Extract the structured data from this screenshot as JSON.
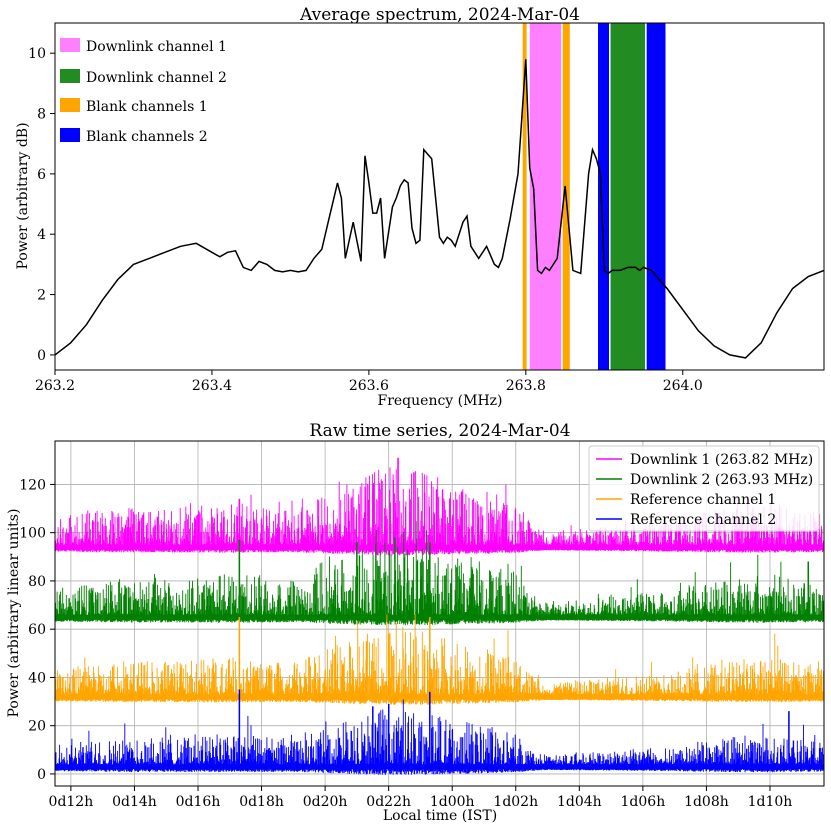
{
  "chart_data": [
    {
      "type": "line",
      "title": "Average spectrum, 2024-Mar-04",
      "xlabel": "Frequency (MHz)",
      "ylabel": "Power (arbitrary dB)",
      "xlim": [
        263.2,
        264.18
      ],
      "ylim": [
        -0.5,
        11
      ],
      "xticks": [
        263.2,
        263.4,
        263.6,
        263.8,
        264.0
      ],
      "xtick_labels": [
        "263.2",
        "263.4",
        "263.6",
        "263.8",
        "264.0"
      ],
      "yticks": [
        0,
        2,
        4,
        6,
        8,
        10
      ],
      "ytick_labels": [
        "0",
        "2",
        "4",
        "6",
        "8",
        "10"
      ],
      "grid": false,
      "legend_position": "top-left",
      "bands": [
        {
          "name": "Downlink channel 1",
          "color": "#ff80ff",
          "ranges": [
            [
              263.805,
              263.845
            ]
          ]
        },
        {
          "name": "Downlink channel 2",
          "color": "#228b22",
          "ranges": [
            [
              263.908,
              263.952
            ]
          ]
        },
        {
          "name": "Blank channels 1",
          "color": "#ffa500",
          "ranges": [
            [
              263.796,
              263.801
            ],
            [
              263.847,
              263.856
            ]
          ]
        },
        {
          "name": "Blank channels 2",
          "color": "#0000ff",
          "ranges": [
            [
              263.892,
              263.906
            ],
            [
              263.954,
              263.978
            ]
          ]
        }
      ],
      "series": [
        {
          "name": "Average spectrum",
          "color": "#000000",
          "x": [
            263.2,
            263.22,
            263.24,
            263.26,
            263.28,
            263.3,
            263.32,
            263.34,
            263.36,
            263.38,
            263.4,
            263.41,
            263.42,
            263.43,
            263.44,
            263.45,
            263.46,
            263.47,
            263.48,
            263.49,
            263.5,
            263.51,
            263.52,
            263.53,
            263.54,
            263.55,
            263.56,
            263.565,
            263.57,
            263.58,
            263.59,
            263.595,
            263.6,
            263.605,
            263.61,
            263.615,
            263.62,
            263.63,
            263.635,
            263.64,
            263.645,
            263.65,
            263.655,
            263.66,
            263.665,
            263.67,
            263.68,
            263.69,
            263.695,
            263.7,
            263.705,
            263.71,
            263.72,
            263.725,
            263.73,
            263.74,
            263.75,
            263.76,
            263.765,
            263.77,
            263.78,
            263.79,
            263.8,
            263.805,
            263.81,
            263.815,
            263.82,
            263.825,
            263.83,
            263.84,
            263.85,
            263.86,
            263.87,
            263.88,
            263.885,
            263.89,
            263.895,
            263.9,
            263.905,
            263.91,
            263.92,
            263.93,
            263.94,
            263.945,
            263.95,
            263.96,
            263.97,
            263.98,
            264.0,
            264.02,
            264.04,
            264.06,
            264.08,
            264.1,
            264.12,
            264.14,
            264.16,
            264.18
          ],
          "values": [
            0.0,
            0.4,
            1.0,
            1.8,
            2.5,
            3.0,
            3.2,
            3.4,
            3.6,
            3.7,
            3.4,
            3.25,
            3.4,
            3.45,
            2.9,
            2.8,
            3.1,
            3.0,
            2.8,
            2.75,
            2.8,
            2.75,
            2.8,
            3.2,
            3.5,
            4.6,
            5.7,
            5.2,
            3.2,
            4.4,
            3.1,
            6.6,
            5.7,
            4.7,
            4.7,
            5.2,
            3.2,
            4.9,
            5.2,
            5.6,
            5.8,
            5.7,
            4.2,
            3.7,
            3.8,
            6.8,
            6.5,
            3.9,
            3.7,
            3.9,
            3.8,
            3.6,
            4.4,
            4.6,
            3.6,
            3.2,
            3.6,
            3.0,
            2.9,
            3.2,
            4.5,
            6.0,
            9.8,
            6.2,
            5.5,
            2.8,
            2.7,
            2.9,
            2.8,
            3.2,
            5.6,
            2.8,
            2.7,
            6.0,
            6.8,
            6.5,
            6.0,
            2.8,
            2.7,
            2.8,
            2.8,
            2.9,
            2.9,
            2.8,
            2.9,
            2.8,
            2.5,
            2.2,
            1.5,
            0.8,
            0.3,
            0.0,
            -0.1,
            0.4,
            1.4,
            2.2,
            2.6,
            2.8
          ]
        }
      ]
    },
    {
      "type": "line",
      "title": "Raw time series, 2024-Mar-04",
      "xlabel": "Local time (IST)",
      "ylabel": "Power (arbitrary linear units)",
      "xlim": [
        11.5,
        35.7
      ],
      "ylim": [
        -5,
        138
      ],
      "xticks": [
        12,
        14,
        16,
        18,
        20,
        22,
        24,
        26,
        28,
        30,
        32,
        34
      ],
      "xtick_labels": [
        "0d12h",
        "0d14h",
        "0d16h",
        "0d18h",
        "0d20h",
        "0d22h",
        "1d00h",
        "1d02h",
        "1d04h",
        "1d06h",
        "1d08h",
        "1d10h"
      ],
      "yticks": [
        0,
        20,
        40,
        60,
        80,
        100,
        120
      ],
      "ytick_labels": [
        "0",
        "20",
        "40",
        "60",
        "80",
        "100",
        "120"
      ],
      "grid": true,
      "legend_position": "top-right",
      "envelope_x": [
        11.5,
        13,
        14,
        16,
        17,
        18,
        19,
        20,
        21,
        22,
        23,
        24,
        25,
        26,
        26.5,
        27,
        28,
        29,
        30,
        31,
        32,
        33,
        34,
        35,
        35.7
      ],
      "envelope_activity": [
        0.35,
        0.45,
        0.5,
        0.5,
        0.55,
        0.5,
        0.45,
        0.65,
        0.85,
        1.0,
        0.95,
        0.8,
        0.7,
        0.55,
        0.3,
        0.15,
        0.2,
        0.25,
        0.3,
        0.35,
        0.45,
        0.5,
        0.55,
        0.45,
        0.4
      ],
      "series": [
        {
          "name": "Downlink 1 (263.82 MHz)",
          "color": "#ff00ff",
          "baseline": 93,
          "spike_scale": 25,
          "spikes": [
            [
              17.3,
              114
            ],
            [
              21.5,
              120
            ],
            [
              22.3,
              131
            ],
            [
              22.8,
              125
            ],
            [
              24.3,
              117
            ],
            [
              33.3,
              115
            ]
          ]
        },
        {
          "name": "Downlink 2 (263.93 MHz)",
          "color": "#008000",
          "baseline": 64,
          "spike_scale": 24,
          "spikes": [
            [
              17.3,
              97
            ],
            [
              21.0,
              96
            ],
            [
              22.2,
              98
            ],
            [
              23.3,
              96
            ],
            [
              35.2,
              88
            ]
          ]
        },
        {
          "name": "Reference channel 1",
          "color": "#ffa500",
          "baseline": 31,
          "spike_scale": 22,
          "spikes": [
            [
              17.3,
              65
            ],
            [
              23.3,
              65
            ],
            [
              22.0,
              58
            ],
            [
              21.3,
              55
            ]
          ]
        },
        {
          "name": "Reference channel 2",
          "color": "#0000ff",
          "baseline": 2,
          "spike_scale": 18,
          "spikes": [
            [
              17.3,
              35
            ],
            [
              23.3,
              34
            ],
            [
              22.0,
              29
            ],
            [
              34.6,
              26
            ],
            [
              21.5,
              28
            ]
          ]
        }
      ]
    }
  ]
}
